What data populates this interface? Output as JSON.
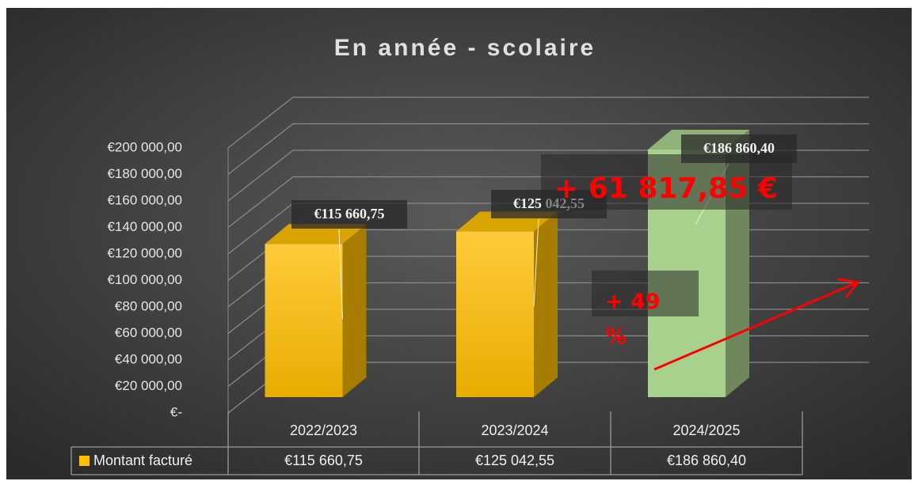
{
  "chart_data": {
    "type": "bar3d",
    "title": "En année - scolaire",
    "categories": [
      "2022/2023",
      "2023/2024",
      "2024/2025"
    ],
    "series": [
      {
        "name": "Montant facturé",
        "color": "#ffc000",
        "colors": [
          "#ffc000",
          "#ffc000",
          "#a9d18e"
        ],
        "values": [
          115660.75,
          125042.55,
          186860.4
        ],
        "value_labels": [
          "€115 660,75",
          "€125 042,55",
          "€186 860,40"
        ]
      }
    ],
    "ylim": [
      0,
      200000
    ],
    "yticks": [
      {
        "value": 0,
        "label": "€-"
      },
      {
        "value": 20000,
        "label": "€20 000,00"
      },
      {
        "value": 40000,
        "label": "€40 000,00"
      },
      {
        "value": 60000,
        "label": "€60 000,00"
      },
      {
        "value": 80000,
        "label": "€80 000,00"
      },
      {
        "value": 100000,
        "label": "€100 000,00"
      },
      {
        "value": 120000,
        "label": "€120 000,00"
      },
      {
        "value": 140000,
        "label": "€140 000,00"
      },
      {
        "value": 160000,
        "label": "€160 000,00"
      },
      {
        "value": 180000,
        "label": "€180 000,00"
      },
      {
        "value": 200000,
        "label": "€200 000,00"
      }
    ],
    "grid": true,
    "data_table": true,
    "annotations": [
      "+ 61 817,85 €",
      "+ 49 %"
    ]
  }
}
